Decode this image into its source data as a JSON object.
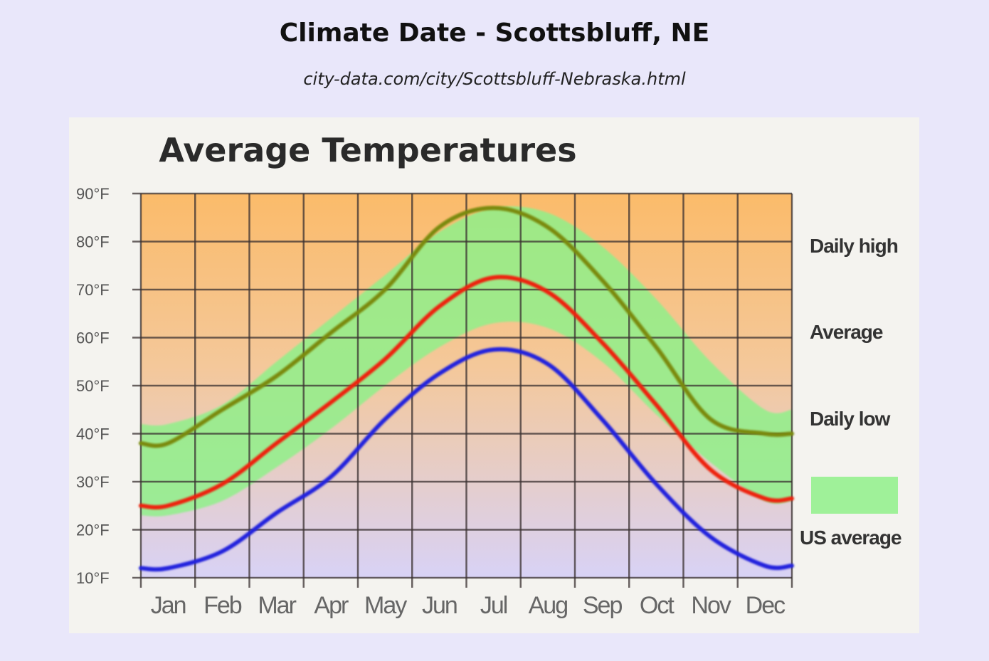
{
  "page": {
    "title": "Climate Date - Scottsbluff, NE",
    "subtitle": "city-data.com/city/Scottsbluff-Nebraska.html"
  },
  "chart_data": {
    "type": "line",
    "title": "Average Temperatures",
    "xlabel": "",
    "ylabel": "",
    "categories": [
      "Jan",
      "Feb",
      "Mar",
      "Apr",
      "May",
      "Jun",
      "Jul",
      "Aug",
      "Sep",
      "Oct",
      "Nov",
      "Dec"
    ],
    "y_ticks": [
      "10°F",
      "20°F",
      "30°F",
      "40°F",
      "50°F",
      "60°F",
      "70°F",
      "80°F",
      "90°F"
    ],
    "ylim": [
      10,
      90
    ],
    "grid": true,
    "legend_position": "right",
    "series": [
      {
        "name": "Daily high",
        "color": "#7a8a10",
        "values": [
          38,
          45,
          52,
          61,
          70,
          83,
          87,
          83,
          72,
          58,
          43,
          40
        ]
      },
      {
        "name": "Average",
        "color": "#ee2211",
        "values": [
          25,
          29.5,
          38,
          46.5,
          55.5,
          66.5,
          72.5,
          69.5,
          59,
          46,
          32.5,
          26.5
        ]
      },
      {
        "name": "Daily low",
        "color": "#2222dd",
        "values": [
          12,
          15.5,
          23.5,
          31,
          43,
          52.5,
          57.5,
          54.5,
          43,
          29.5,
          18.5,
          12.5
        ]
      }
    ],
    "band": {
      "name": "US average",
      "color": "#8ff08a",
      "upper": [
        42,
        46,
        55,
        64,
        73,
        82,
        87,
        86,
        79,
        68,
        55,
        45
      ],
      "lower": [
        23,
        26,
        33,
        41,
        50,
        58,
        63,
        62,
        55,
        44,
        34,
        26
      ]
    },
    "background_gradient": [
      "#fbbb6a",
      "#d8d2f6"
    ]
  }
}
